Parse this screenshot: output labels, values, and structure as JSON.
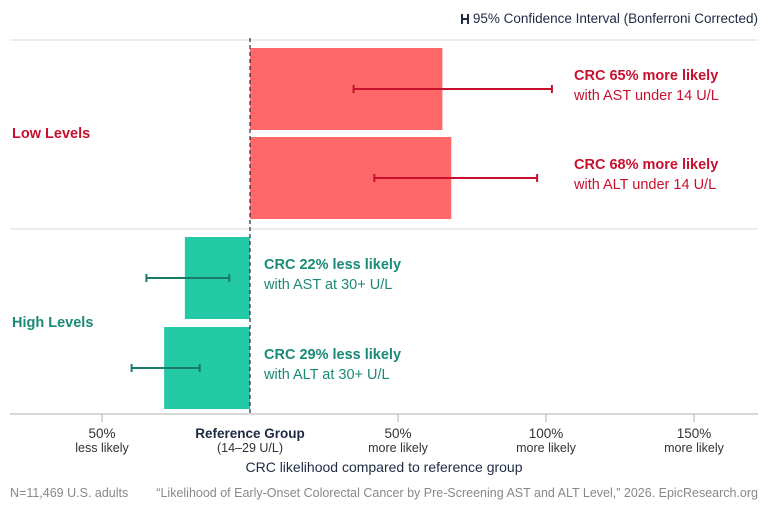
{
  "legend": {
    "label": "95% Confidence Interval (Bonferroni Corrected)"
  },
  "colors": {
    "increase": "#ff6868",
    "increase_text": "#c8102e",
    "decrease": "#24c9a6",
    "decrease_text": "#1a8a76",
    "axis": "#1f2a44"
  },
  "chart_data": {
    "type": "bar",
    "orientation": "horizontal",
    "xlabel": "CRC likelihood compared to reference group",
    "xlim": [
      -100,
      170
    ],
    "ticks": [
      {
        "value": -50,
        "line1": "50%",
        "line2": "less likely"
      },
      {
        "value": 0,
        "line1": "Reference Group",
        "line2": "(14–29 U/L)",
        "reference": true
      },
      {
        "value": 50,
        "line1": "50%",
        "line2": "more likely"
      },
      {
        "value": 100,
        "line1": "100%",
        "line2": "more likely"
      },
      {
        "value": 150,
        "line1": "150%",
        "line2": "more likely"
      }
    ],
    "groups": [
      {
        "label": "Low  Levels",
        "direction": "increase",
        "bars": [
          {
            "value": 65,
            "ci": [
              35,
              102
            ],
            "label_bold": "CRC 65% more likely",
            "label_sub": "with AST under 14 U/L"
          },
          {
            "value": 68,
            "ci": [
              42,
              97
            ],
            "label_bold": "CRC 68% more likely",
            "label_sub": "with ALT under 14 U/L"
          }
        ]
      },
      {
        "label": "High  Levels",
        "direction": "decrease",
        "bars": [
          {
            "value": -22,
            "ci": [
              -35,
              -7
            ],
            "label_bold": "CRC 22% less likely",
            "label_sub": "with AST at 30+ U/L"
          },
          {
            "value": -29,
            "ci": [
              -40,
              -17
            ],
            "label_bold": "CRC 29% less likely",
            "label_sub": "with ALT at 30+ U/L"
          }
        ]
      }
    ]
  },
  "footer": {
    "left": "N=11,469 U.S. adults",
    "right": "“Likelihood of Early-Onset Colorectal Cancer by Pre-Screening AST and ALT Level,” 2026. EpicResearch.org"
  }
}
